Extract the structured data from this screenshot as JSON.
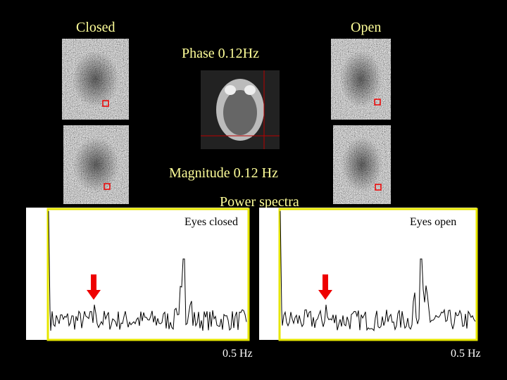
{
  "labels": {
    "closed": "Closed",
    "open": "Open",
    "phase": "Phase 0.12Hz",
    "magnitude": "Magnitude 0.12 Hz",
    "power_spectra": "Power spectra"
  },
  "spectra": [
    {
      "title": "Eyes closed",
      "x_label": "0.5 Hz"
    },
    {
      "title": "Eyes open",
      "x_label": "0.5 Hz"
    }
  ]
}
